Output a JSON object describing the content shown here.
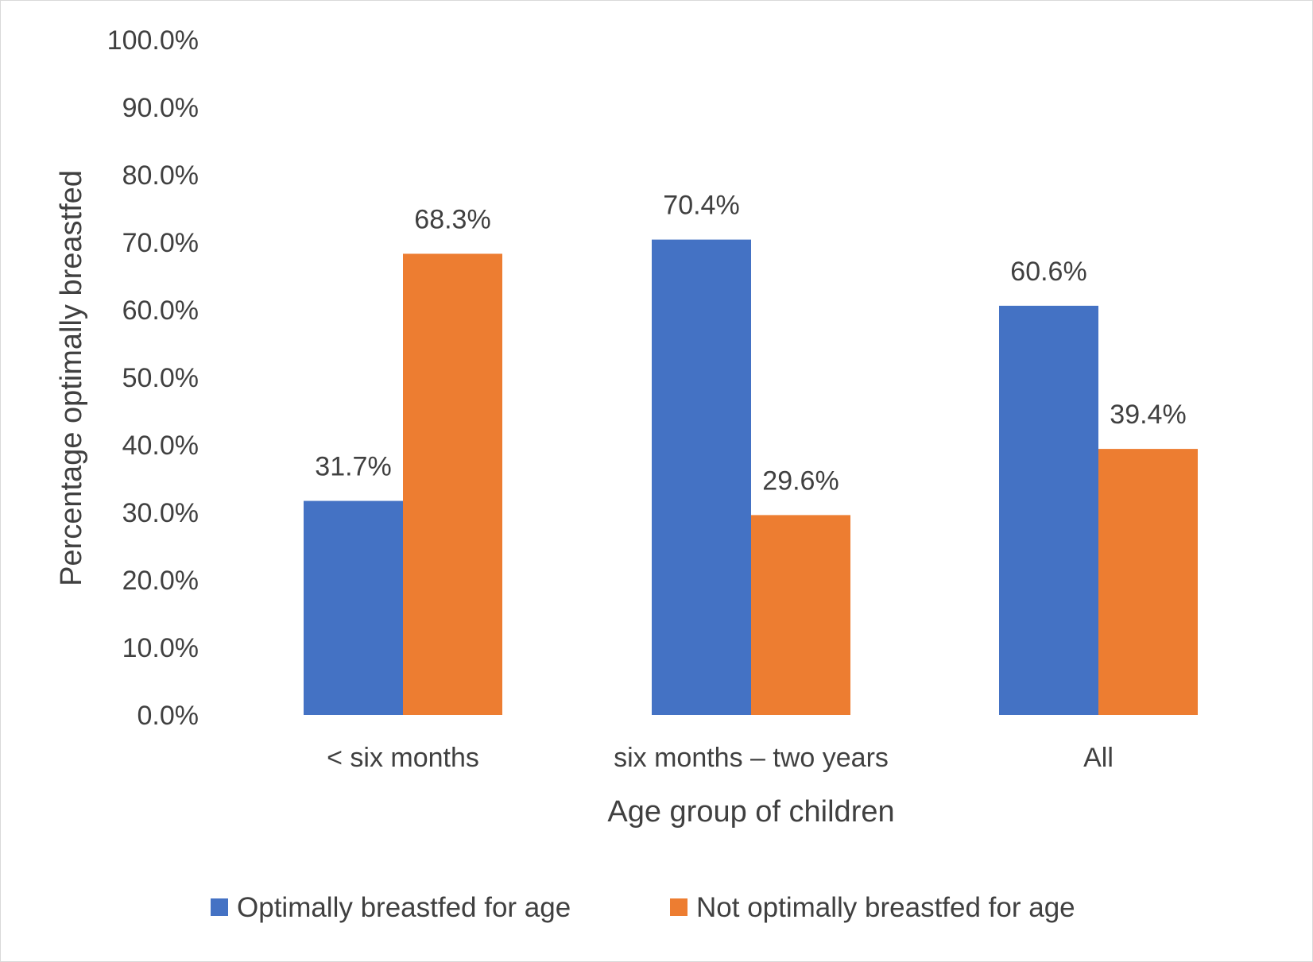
{
  "chart_data": {
    "type": "bar",
    "title": "",
    "xlabel": "Age group of children",
    "ylabel": "Percentage optimally breastfed",
    "ylim": [
      0,
      100
    ],
    "y_ticks": [
      "0.0%",
      "10.0%",
      "20.0%",
      "30.0%",
      "40.0%",
      "50.0%",
      "60.0%",
      "70.0%",
      "80.0%",
      "90.0%",
      "100.0%"
    ],
    "categories": [
      "< six months",
      "six months – two years",
      "All"
    ],
    "series": [
      {
        "name": "Optimally breastfed for age",
        "color": "#4472C4",
        "values": [
          31.7,
          70.4,
          60.6
        ],
        "labels": [
          "31.7%",
          "70.4%",
          "60.6%"
        ]
      },
      {
        "name": "Not optimally breastfed for age",
        "color": "#ED7D31",
        "values": [
          68.3,
          29.6,
          39.4
        ],
        "labels": [
          "68.3%",
          "29.6%",
          "39.4%"
        ]
      }
    ],
    "grid": false,
    "legend_position": "bottom"
  }
}
